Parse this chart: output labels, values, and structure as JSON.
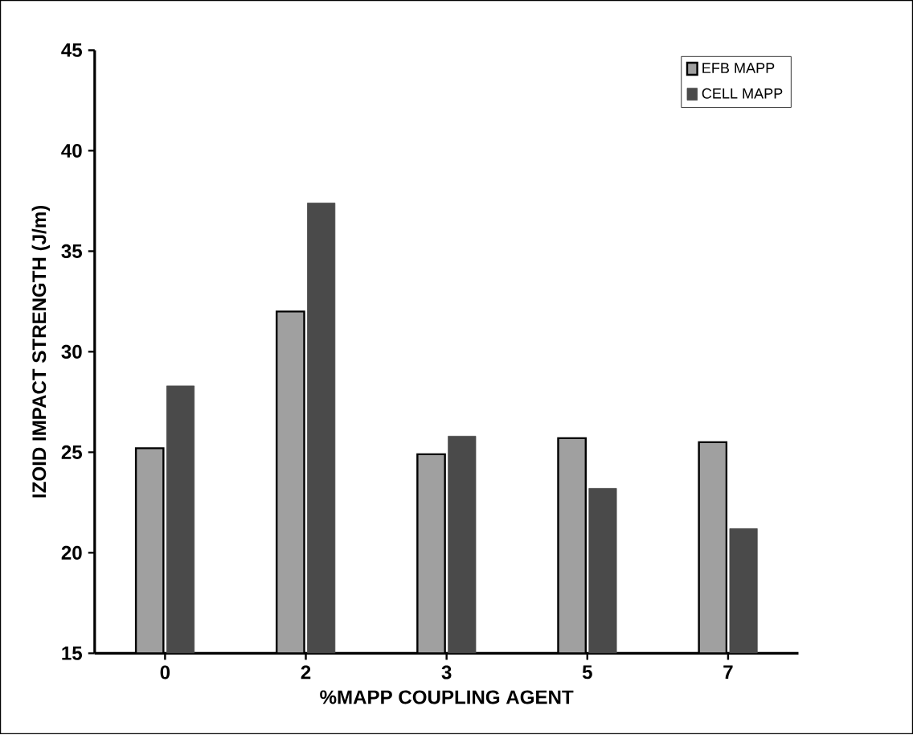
{
  "chart_data": {
    "type": "bar",
    "xlabel": "%MAPP COUPLING AGENT",
    "ylabel": "IZOID IMPACT STRENGTH (J/m)",
    "categories": [
      "0",
      "2",
      "3",
      "5",
      "7"
    ],
    "series": [
      {
        "name": "EFB MAPP",
        "color": "#a0a0a0",
        "values": [
          25.2,
          32.0,
          24.9,
          25.7,
          25.5
        ]
      },
      {
        "name": "CELL MAPP",
        "color": "#4a4a4a",
        "values": [
          28.3,
          37.4,
          25.8,
          23.2,
          21.2
        ]
      }
    ],
    "ylim": [
      15,
      45
    ],
    "yticks": [
      15,
      20,
      25,
      30,
      35,
      40,
      45
    ],
    "grid": false,
    "legend": "top right"
  }
}
